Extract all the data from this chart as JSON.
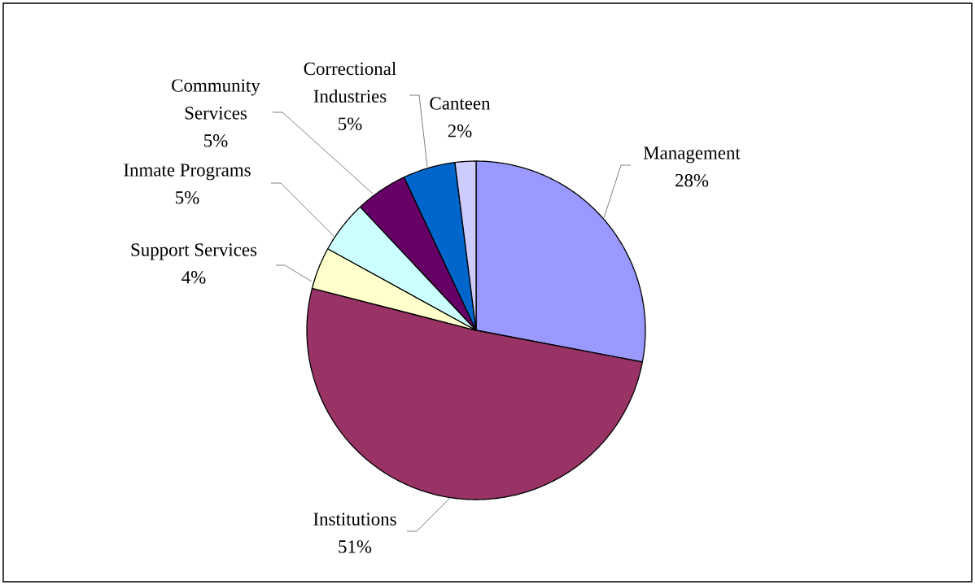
{
  "chart_data": {
    "type": "pie",
    "categories": [
      "Management",
      "Institutions",
      "Support Services",
      "Inmate Programs",
      "Community Services",
      "Correctional Industries",
      "Canteen"
    ],
    "values": [
      28,
      51,
      4,
      5,
      5,
      5,
      2
    ],
    "value_labels": [
      "28%",
      "51%",
      "4%",
      "5%",
      "5%",
      "5%",
      "2%"
    ],
    "colors": [
      "#9999ff",
      "#993366",
      "#ffffcc",
      "#ccffff",
      "#660066",
      "#0066cc",
      "#ccccff"
    ]
  }
}
